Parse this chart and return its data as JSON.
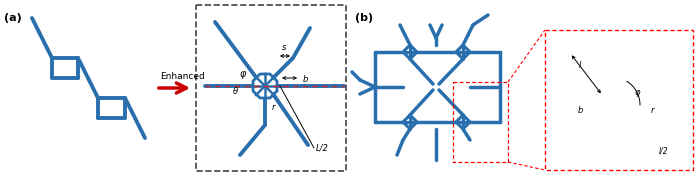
{
  "bg_color": "#ffffff",
  "blue_color": "#2a6fad",
  "red_color": "#cc0000",
  "red_dashed": "#cc2222",
  "label_a": "(a)",
  "label_b": "(b)",
  "enhanced_text": "Enhanced",
  "fig_width": 6.97,
  "fig_height": 1.76
}
